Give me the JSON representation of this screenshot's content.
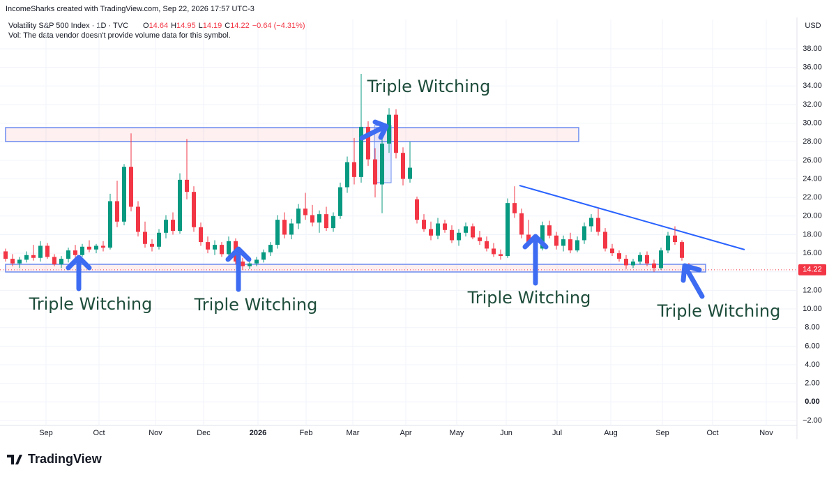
{
  "header": {
    "credit": "IncomeSharks created with TradingView.com, Sep 22, 2026 17:57 UTC-3",
    "logo": "TradingView"
  },
  "chart_data": {
    "type": "candlestick",
    "symbol": "Volatility S&P 500 Index · 1D · TVC",
    "legend": {
      "open_label": "O",
      "open": 14.64,
      "high_label": "H",
      "high": 14.95,
      "low_label": "L",
      "low": 14.19,
      "close_label": "C",
      "close": 14.22,
      "change": "−0.64 (−4.31%)"
    },
    "volume_note": "Vol: The data vendor doesn't provide volume data for this symbol.",
    "currency": "USD",
    "up_color": "#089981",
    "down_color": "#f23645",
    "xlim": [
      -0.8,
      113.5
    ],
    "xticks": [
      {
        "value": 5.8,
        "label": "Sep"
      },
      {
        "value": 13.4,
        "label": "Oct"
      },
      {
        "value": 21.5,
        "label": "Nov"
      },
      {
        "value": 28.4,
        "label": "Dec"
      },
      {
        "value": 36.2,
        "label": "2026"
      },
      {
        "value": 43.1,
        "label": "Feb"
      },
      {
        "value": 49.8,
        "label": "Mar"
      },
      {
        "value": 57.4,
        "label": "Apr"
      },
      {
        "value": 64.7,
        "label": "May"
      },
      {
        "value": 71.8,
        "label": "Jun"
      },
      {
        "value": 79.1,
        "label": "Jul"
      },
      {
        "value": 86.8,
        "label": "Aug"
      },
      {
        "value": 94.2,
        "label": "Sep"
      },
      {
        "value": 101.4,
        "label": "Oct"
      },
      {
        "value": 109.1,
        "label": "Nov"
      }
    ],
    "ylim": [
      -2.53,
      41.15
    ],
    "yticks": [
      {
        "value": -2,
        "label": "−2.00"
      },
      {
        "value": 0,
        "label": "0.00"
      },
      {
        "value": 2,
        "label": "2.00"
      },
      {
        "value": 4,
        "label": "4.00"
      },
      {
        "value": 6,
        "label": "6.00"
      },
      {
        "value": 8,
        "label": "8.00"
      },
      {
        "value": 10,
        "label": "10.00"
      },
      {
        "value": 12,
        "label": "12.00"
      },
      {
        "value": 14,
        "label": "14.00"
      },
      {
        "value": 16,
        "label": "16.00"
      },
      {
        "value": 18,
        "label": "18.00"
      },
      {
        "value": 20,
        "label": "20.00"
      },
      {
        "value": 22,
        "label": "22.00"
      },
      {
        "value": 24,
        "label": "24.00"
      },
      {
        "value": 26,
        "label": "26.00"
      },
      {
        "value": 28,
        "label": "28.00"
      },
      {
        "value": 30,
        "label": "30.00"
      },
      {
        "value": 32,
        "label": "32.00"
      },
      {
        "value": 34,
        "label": "34.00"
      },
      {
        "value": 36,
        "label": "36.00"
      },
      {
        "value": 38,
        "label": "38.00"
      }
    ],
    "ohlc": [
      [
        16.2,
        16.5,
        15.1,
        15.4
      ],
      [
        15.4,
        15.9,
        14.6,
        14.9
      ],
      [
        14.9,
        15.6,
        14.4,
        15.3
      ],
      [
        15.3,
        16.2,
        15.0,
        15.8
      ],
      [
        15.8,
        16.9,
        15.2,
        15.5
      ],
      [
        15.5,
        17.3,
        15.1,
        16.8
      ],
      [
        16.8,
        17.1,
        15.4,
        15.6
      ],
      [
        15.6,
        15.9,
        14.6,
        14.8
      ],
      [
        14.8,
        15.7,
        14.4,
        15.4
      ],
      [
        15.4,
        16.6,
        15.0,
        16.3
      ],
      [
        16.3,
        16.9,
        15.5,
        15.8
      ],
      [
        15.8,
        17.0,
        15.6,
        16.7
      ],
      [
        16.7,
        17.4,
        16.1,
        16.4
      ],
      [
        16.4,
        17.0,
        16.0,
        16.8
      ],
      [
        16.8,
        17.3,
        16.2,
        16.6
      ],
      [
        16.6,
        22.4,
        16.4,
        21.6
      ],
      [
        21.6,
        23.8,
        18.8,
        19.4
      ],
      [
        19.4,
        25.6,
        19.0,
        25.3
      ],
      [
        25.3,
        28.9,
        20.5,
        21.0
      ],
      [
        21.0,
        21.6,
        17.8,
        18.3
      ],
      [
        18.3,
        19.4,
        16.6,
        17.0
      ],
      [
        17.0,
        17.5,
        16.2,
        16.7
      ],
      [
        16.7,
        18.6,
        16.4,
        18.2
      ],
      [
        18.2,
        20.1,
        17.6,
        19.6
      ],
      [
        19.6,
        20.4,
        18.0,
        18.4
      ],
      [
        18.4,
        24.6,
        18.1,
        23.9
      ],
      [
        23.9,
        28.3,
        21.8,
        22.6
      ],
      [
        22.6,
        23.2,
        18.3,
        18.8
      ],
      [
        18.8,
        19.3,
        16.8,
        17.2
      ],
      [
        17.2,
        17.8,
        16.0,
        16.4
      ],
      [
        16.4,
        17.4,
        15.8,
        16.9
      ],
      [
        16.9,
        17.2,
        15.6,
        15.9
      ],
      [
        15.9,
        17.8,
        15.6,
        17.3
      ],
      [
        17.3,
        17.6,
        14.8,
        15.1
      ],
      [
        15.1,
        15.5,
        14.2,
        14.6
      ],
      [
        14.6,
        15.2,
        14.3,
        14.9
      ],
      [
        14.9,
        15.6,
        14.6,
        15.3
      ],
      [
        15.3,
        16.4,
        15.0,
        16.1
      ],
      [
        16.1,
        17.2,
        15.7,
        16.9
      ],
      [
        16.9,
        20.1,
        16.5,
        19.6
      ],
      [
        19.6,
        20.4,
        17.6,
        18.0
      ],
      [
        18.0,
        19.7,
        17.5,
        19.2
      ],
      [
        19.2,
        21.3,
        18.6,
        20.8
      ],
      [
        20.8,
        22.5,
        19.6,
        20.1
      ],
      [
        20.1,
        21.2,
        18.9,
        19.3
      ],
      [
        19.3,
        20.6,
        18.2,
        20.2
      ],
      [
        20.2,
        21.0,
        18.4,
        18.7
      ],
      [
        18.7,
        20.4,
        18.3,
        20.0
      ],
      [
        20.0,
        23.6,
        19.7,
        23.1
      ],
      [
        23.1,
        26.4,
        22.5,
        25.8
      ],
      [
        25.8,
        28.4,
        23.4,
        24.2
      ],
      [
        24.2,
        35.3,
        23.6,
        29.6
      ],
      [
        29.6,
        30.2,
        25.4,
        26.1
      ],
      [
        26.1,
        27.3,
        22.0,
        23.4
      ],
      [
        23.4,
        28.6,
        20.3,
        27.8
      ],
      [
        27.8,
        31.6,
        26.8,
        30.9
      ],
      [
        30.9,
        31.5,
        26.2,
        26.8
      ],
      [
        26.8,
        27.4,
        23.3,
        24.0
      ],
      [
        24.0,
        28.0,
        23.6,
        25.2
      ],
      [
        21.8,
        22.1,
        19.2,
        19.6
      ],
      [
        19.6,
        20.2,
        18.3,
        18.6
      ],
      [
        18.6,
        19.4,
        17.4,
        17.9
      ],
      [
        17.9,
        19.8,
        17.5,
        19.2
      ],
      [
        19.2,
        19.6,
        18.2,
        18.5
      ],
      [
        18.5,
        19.0,
        17.1,
        17.4
      ],
      [
        17.4,
        18.6,
        16.8,
        18.2
      ],
      [
        18.2,
        19.3,
        17.8,
        18.9
      ],
      [
        18.9,
        19.2,
        17.5,
        17.7
      ],
      [
        17.7,
        18.4,
        16.9,
        17.3
      ],
      [
        17.3,
        17.8,
        16.2,
        16.5
      ],
      [
        16.5,
        17.1,
        15.6,
        15.9
      ],
      [
        15.9,
        16.4,
        15.3,
        15.7
      ],
      [
        15.7,
        21.9,
        15.5,
        21.4
      ],
      [
        21.4,
        23.2,
        19.8,
        20.3
      ],
      [
        20.3,
        20.8,
        17.6,
        18.0
      ],
      [
        18.0,
        19.6,
        16.7,
        17.1
      ],
      [
        17.1,
        17.8,
        16.1,
        16.5
      ],
      [
        16.5,
        19.4,
        16.3,
        19.0
      ],
      [
        19.0,
        19.5,
        17.6,
        17.9
      ],
      [
        17.9,
        18.3,
        16.4,
        16.8
      ],
      [
        16.8,
        17.9,
        16.2,
        17.5
      ],
      [
        17.5,
        18.2,
        16.0,
        16.3
      ],
      [
        16.3,
        17.8,
        16.1,
        17.4
      ],
      [
        17.4,
        19.3,
        17.0,
        18.9
      ],
      [
        18.9,
        20.2,
        18.3,
        19.8
      ],
      [
        19.8,
        20.8,
        17.9,
        18.3
      ],
      [
        18.3,
        18.7,
        16.2,
        16.5
      ],
      [
        16.5,
        17.0,
        15.7,
        16.0
      ],
      [
        16.0,
        16.3,
        15.1,
        15.4
      ],
      [
        15.4,
        15.8,
        14.3,
        14.7
      ],
      [
        14.7,
        15.4,
        14.4,
        15.1
      ],
      [
        15.1,
        16.1,
        14.8,
        15.8
      ],
      [
        15.8,
        16.2,
        14.6,
        14.9
      ],
      [
        14.9,
        15.3,
        14.0,
        14.4
      ],
      [
        14.4,
        16.6,
        14.2,
        16.3
      ],
      [
        16.3,
        18.3,
        16.0,
        17.9
      ],
      [
        17.9,
        18.9,
        16.9,
        17.2
      ],
      [
        17.2,
        17.4,
        15.2,
        15.5
      ],
      [
        14.64,
        14.95,
        14.19,
        14.22
      ]
    ],
    "annotations": [
      "Triple Witching",
      "Triple Witching",
      "Triple Witching",
      "Triple Witching",
      "Triple Witching"
    ]
  }
}
